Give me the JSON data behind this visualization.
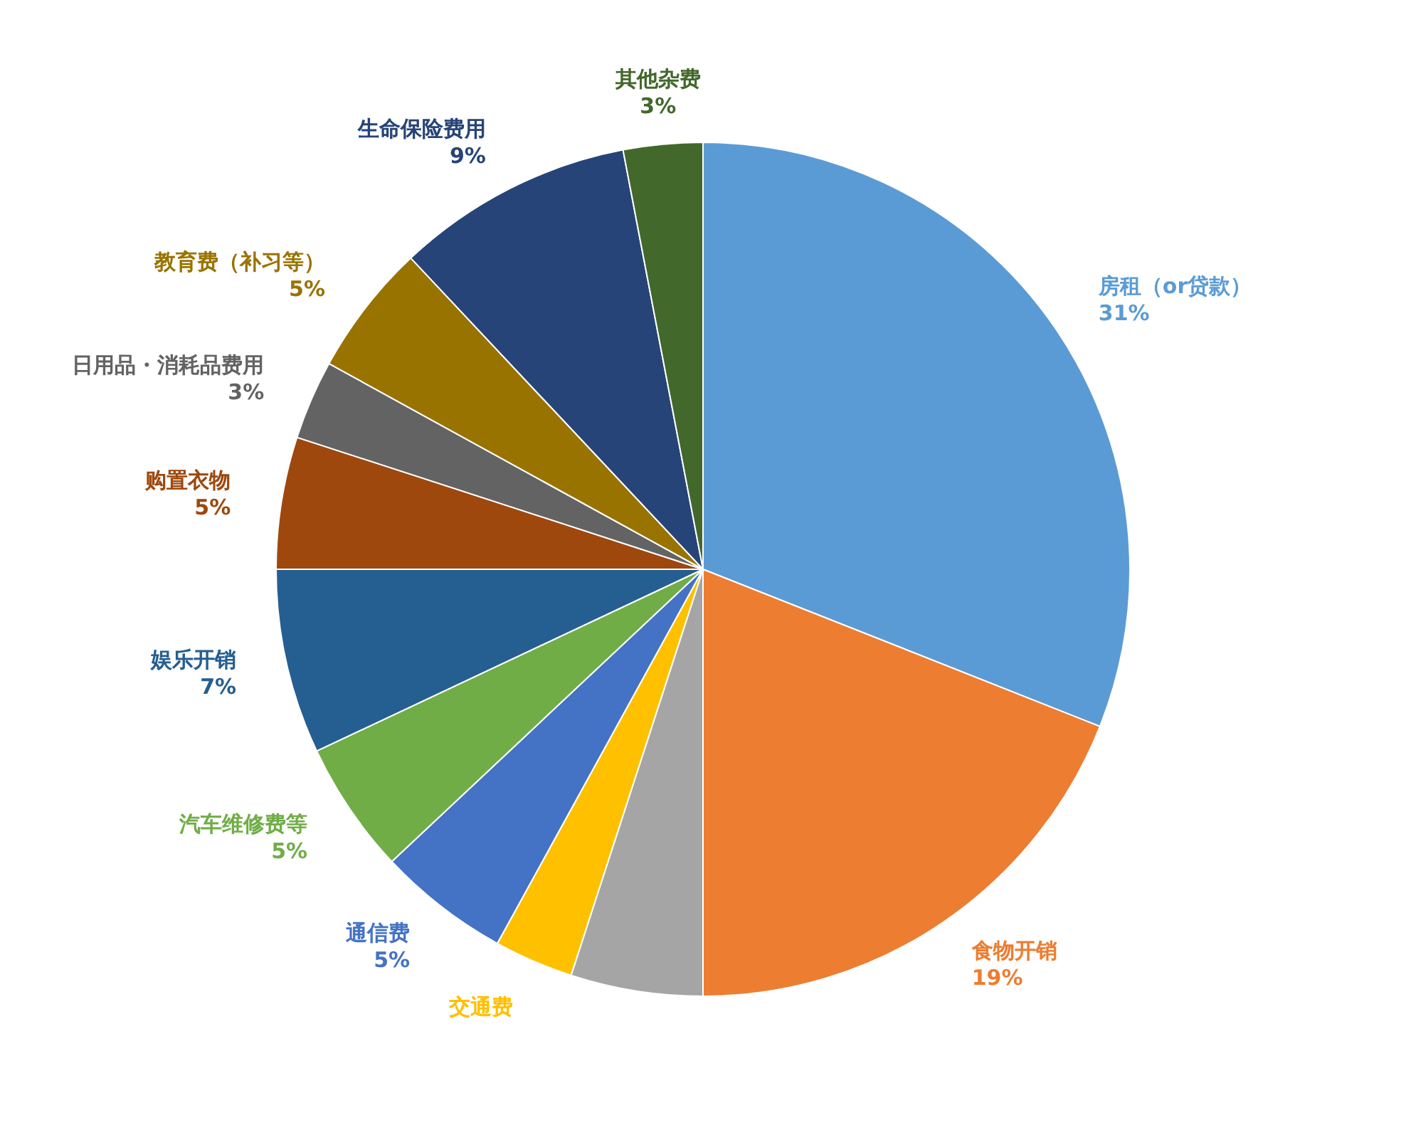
{
  "chart_data": {
    "type": "pie",
    "categories": [
      "房租（or贷款）",
      "食物开销",
      null,
      "交通费",
      "通信费",
      "汽车维修费等",
      "娱乐开销",
      "购置衣物",
      "日用品・消耗品费用",
      "教育费（补习等）",
      "生命保险费用",
      "其他杂费"
    ],
    "values": [
      31,
      19,
      5,
      3,
      5,
      5,
      7,
      5,
      3,
      5,
      9,
      3
    ],
    "value_labels": [
      "31%",
      "19%",
      null,
      null,
      "5%",
      "5%",
      "7%",
      "5%",
      "3%",
      "5%",
      "9%",
      "3%"
    ],
    "colors": [
      "#5b9bd5",
      "#ed7d31",
      "#a5a5a5",
      "#ffc000",
      "#4472c4",
      "#70ad47",
      "#255e91",
      "#9e480e",
      "#636363",
      "#997300",
      "#264478",
      "#43682b"
    ]
  }
}
